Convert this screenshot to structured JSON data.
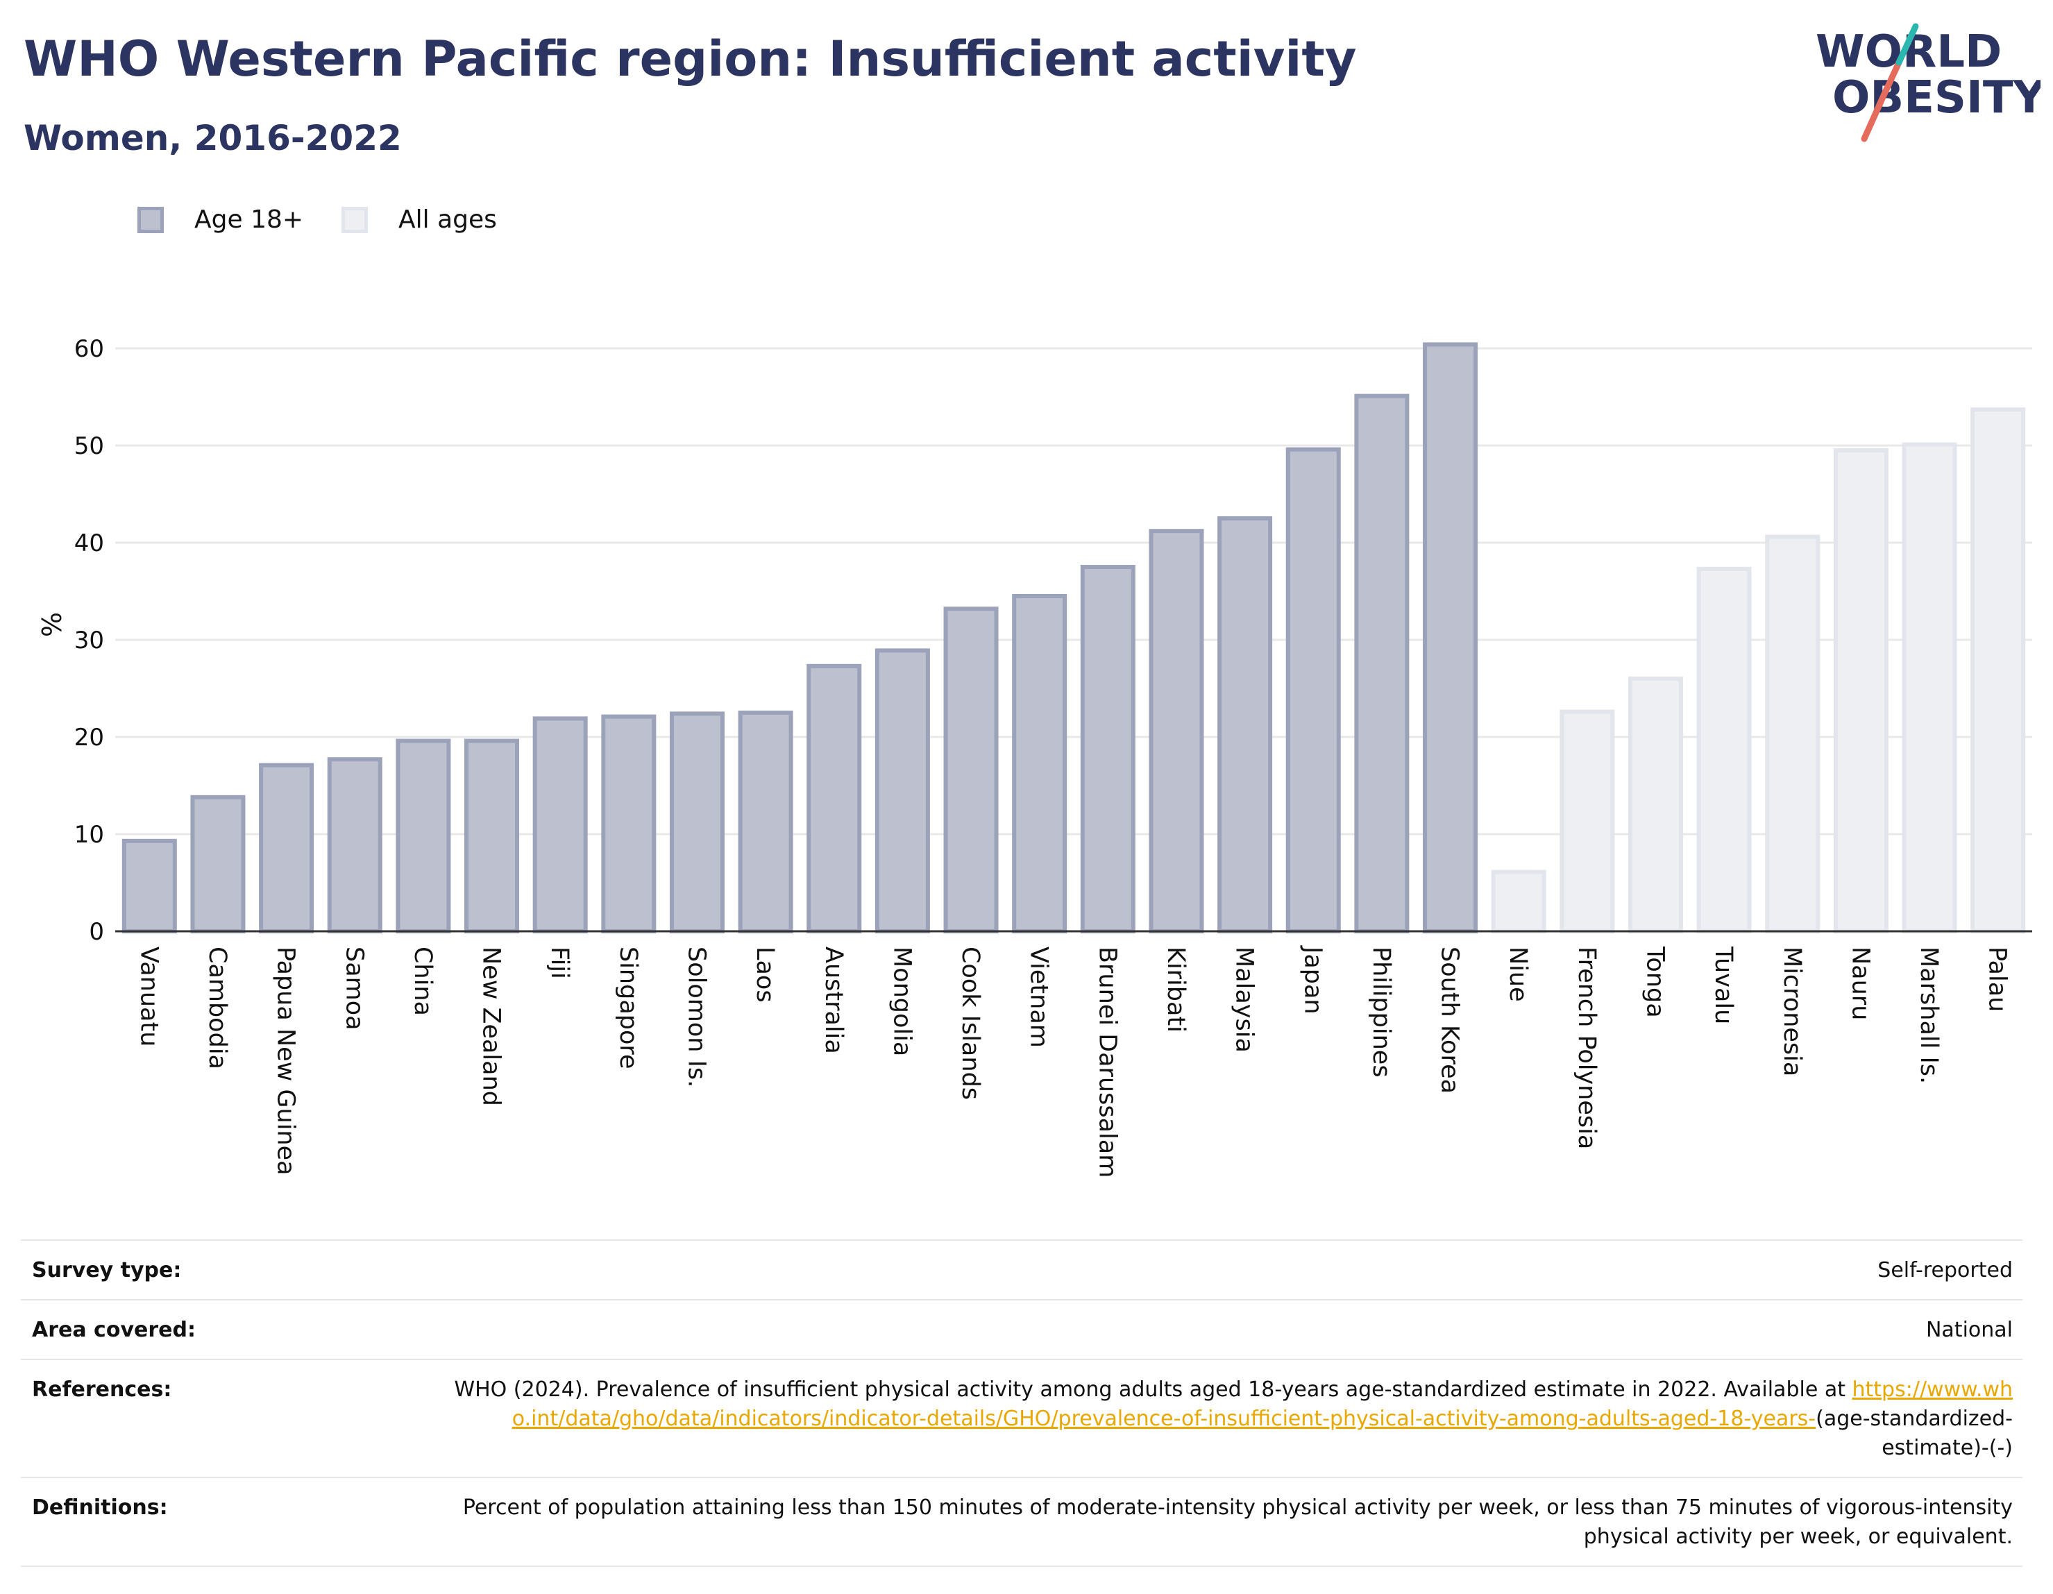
{
  "header": {
    "title": "WHO Western Pacific region: Insufficient activity",
    "subtitle": "Women, 2016-2022"
  },
  "logo": {
    "line1": "WORLD",
    "line2": "OBESITY"
  },
  "legend": {
    "items": [
      {
        "label": "Age 18+",
        "color": "#bcc0cf",
        "border": "#9ba2b9"
      },
      {
        "label": "All ages",
        "color": "#eeeff3",
        "border": "#e3e5ec"
      }
    ]
  },
  "chart_data": {
    "type": "bar",
    "ylabel": "%",
    "ylim": [
      0,
      65
    ],
    "yticks": [
      0,
      10,
      20,
      30,
      40,
      50,
      60
    ],
    "grid": true,
    "categories": [
      "Vanuatu",
      "Cambodia",
      "Papua New Guinea",
      "Samoa",
      "China",
      "New Zealand",
      "Fiji",
      "Singapore",
      "Solomon Is.",
      "Laos",
      "Australia",
      "Mongolia",
      "Cook Islands",
      "Vietnam",
      "Brunei Darussalam",
      "Kiribati",
      "Malaysia",
      "Japan",
      "Philippines",
      "South Korea",
      "Niue",
      "French Polynesia",
      "Tonga",
      "Tuvalu",
      "Micronesia",
      "Nauru",
      "Marshall Is.",
      "Palau"
    ],
    "values": [
      9.3,
      13.8,
      17.1,
      17.7,
      19.6,
      19.6,
      21.9,
      22.1,
      22.4,
      22.5,
      27.3,
      28.9,
      33.2,
      34.5,
      37.5,
      41.2,
      42.5,
      49.6,
      55.1,
      60.4,
      6.1,
      22.6,
      26.0,
      37.3,
      40.6,
      49.5,
      50.1,
      53.7
    ],
    "groups": [
      "Age 18+",
      "Age 18+",
      "Age 18+",
      "Age 18+",
      "Age 18+",
      "Age 18+",
      "Age 18+",
      "Age 18+",
      "Age 18+",
      "Age 18+",
      "Age 18+",
      "Age 18+",
      "Age 18+",
      "Age 18+",
      "Age 18+",
      "Age 18+",
      "Age 18+",
      "Age 18+",
      "Age 18+",
      "Age 18+",
      "All ages",
      "All ages",
      "All ages",
      "All ages",
      "All ages",
      "All ages",
      "All ages",
      "All ages"
    ]
  },
  "footer": {
    "rows": [
      {
        "label": "Survey type:",
        "value": "Self-reported"
      },
      {
        "label": "Area covered:",
        "value": "National"
      },
      {
        "label": "References:",
        "value": "WHO (2024). Prevalence of insufficient physical activity among adults aged 18-years age-standardized estimate in 2022. Available at",
        "link": "https://www.who.int/data/gho/data/indicators/indicator-details/GHO/prevalence-of-insufficient-physical-activity-among-adults-aged-18-years-",
        "after": "(age-standardized-estimate)-(-)"
      },
      {
        "label": "Definitions:",
        "value": "Percent of population attaining less than 150 minutes of moderate-intensity physical activity per week, or less than 75 minutes of vigorous-intensity physical activity per week, or equivalent."
      }
    ]
  }
}
